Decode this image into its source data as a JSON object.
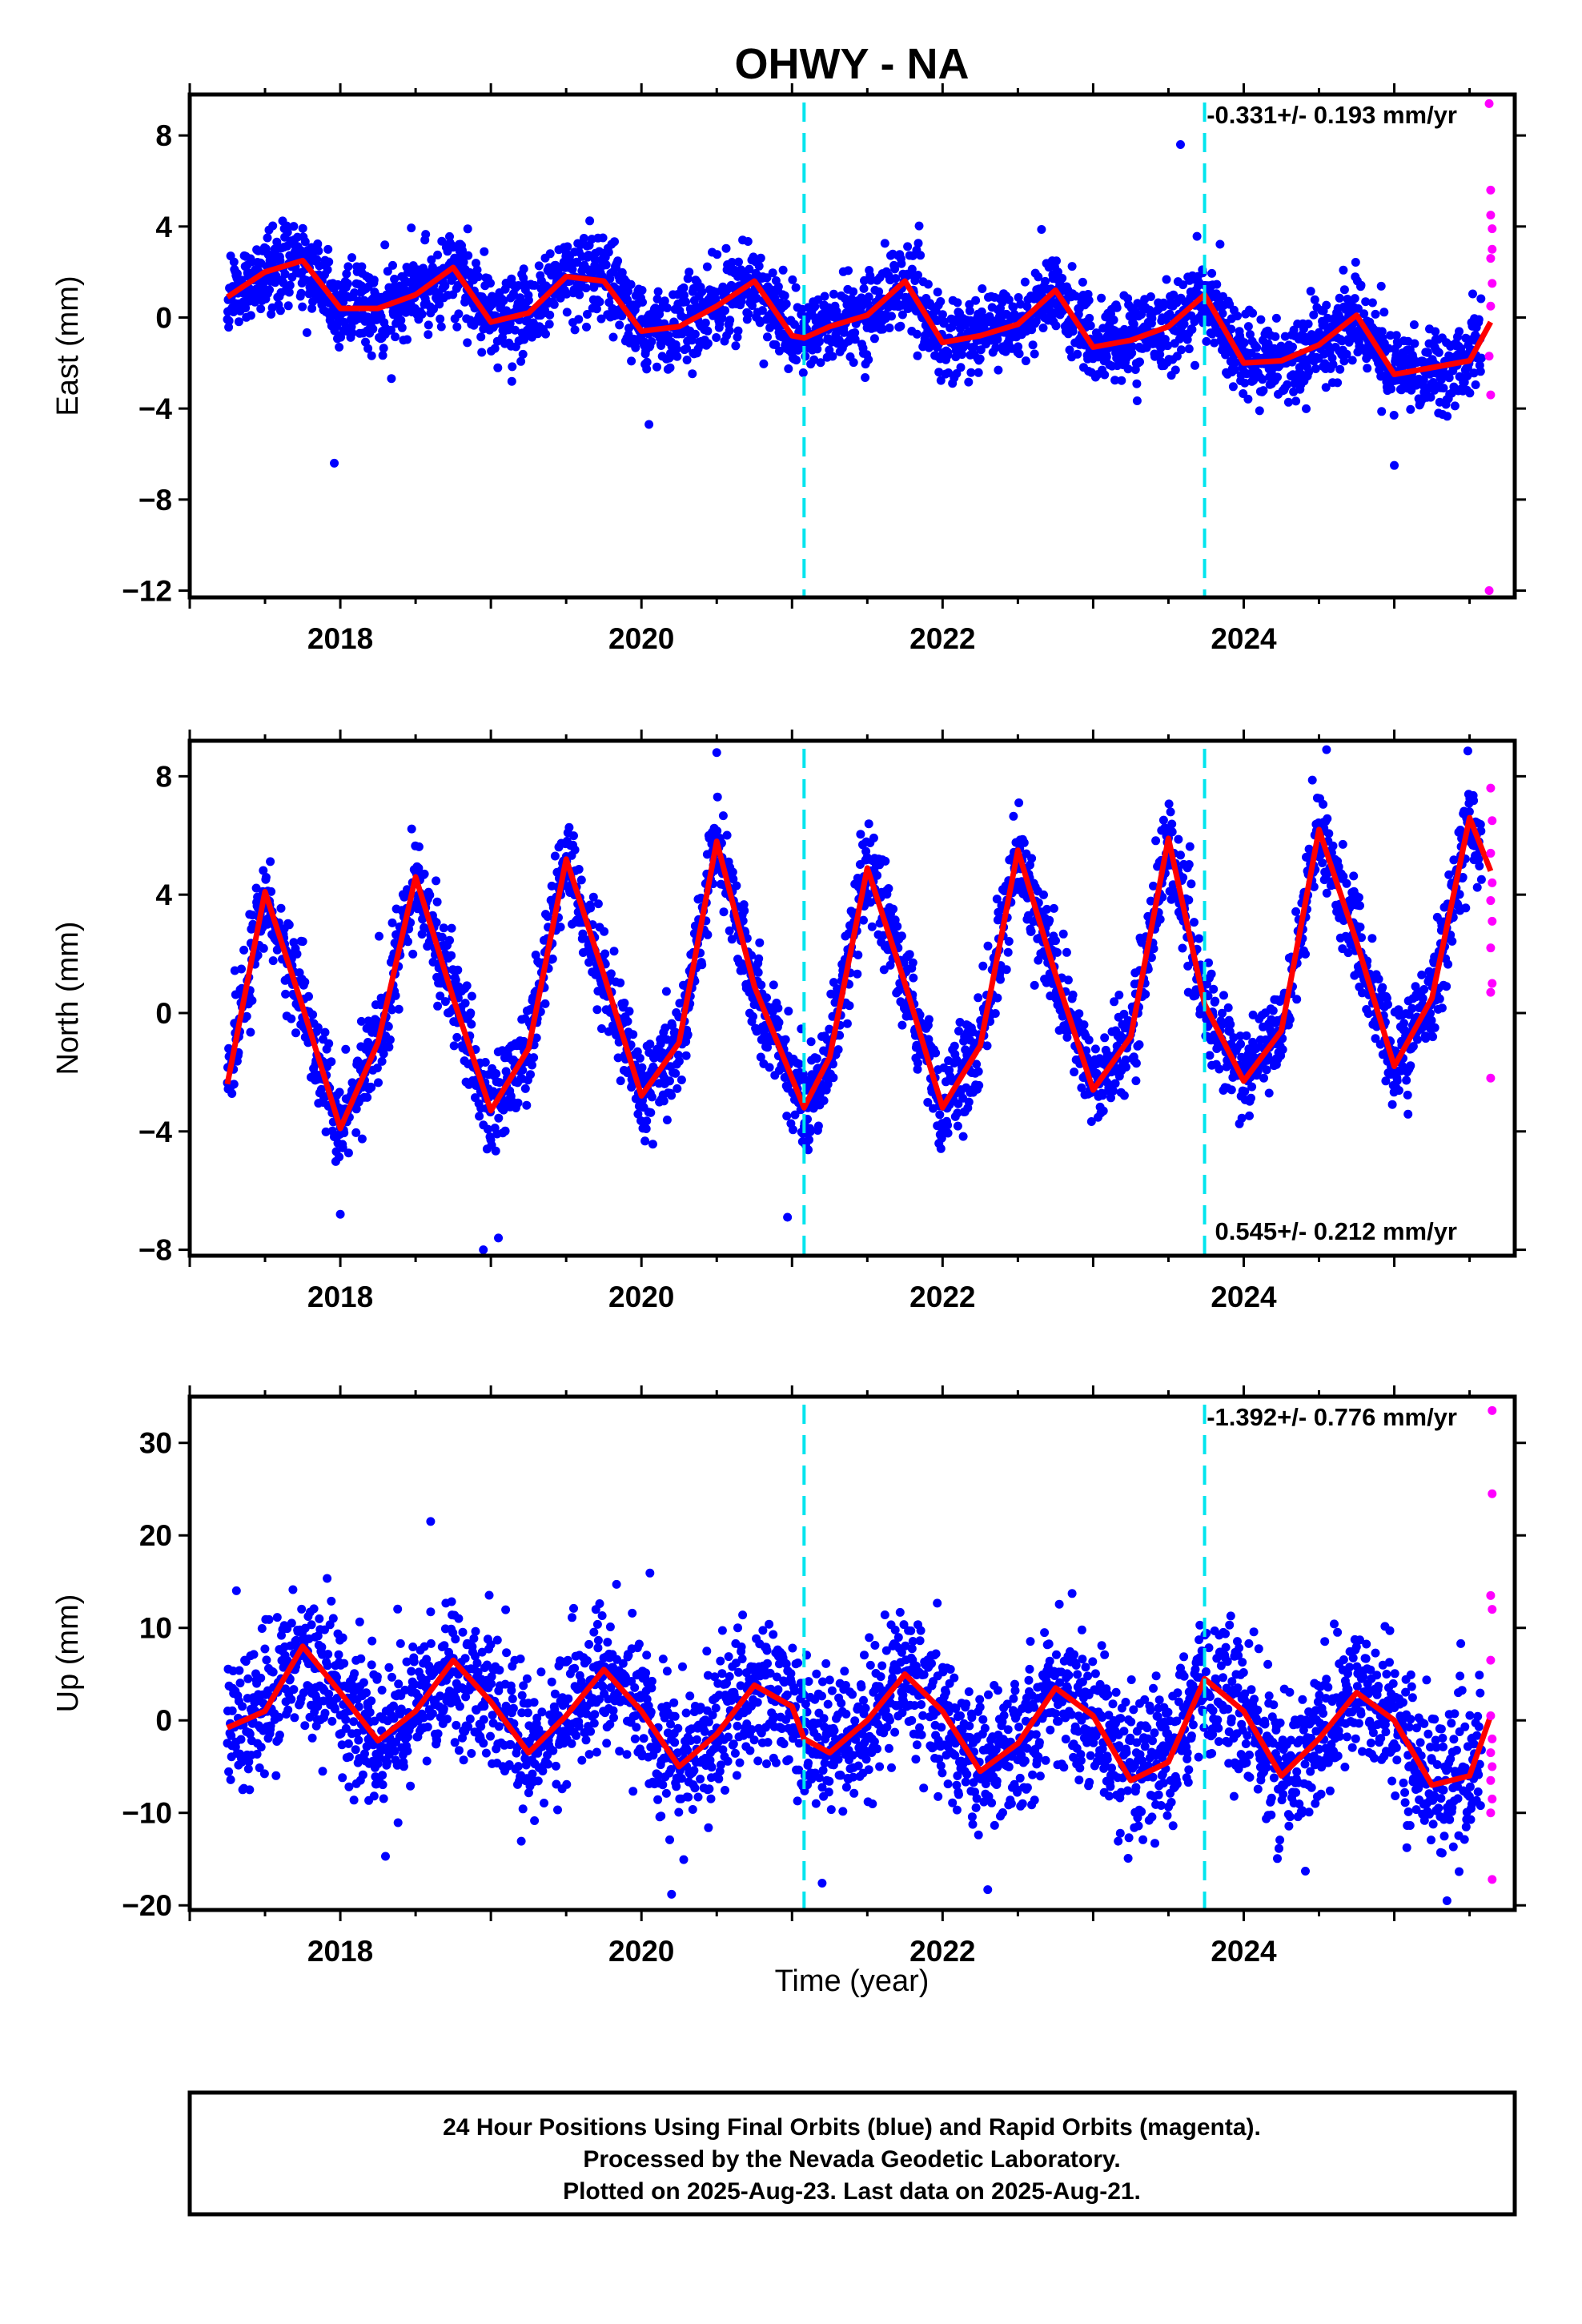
{
  "title": "OHWY - NA",
  "colors": {
    "final_orbits": "#0000ff",
    "rapid_orbits": "#ff00ff",
    "model_fit": "#ff0000",
    "event_lines": "#00e5ee"
  },
  "xlabel": "Time (year)",
  "caption": {
    "line1": "24 Hour Positions Using Final Orbits (blue) and Rapid Orbits (magenta).",
    "line2": "Processed by the Nevada Geodetic Laboratory.",
    "line3": "Plotted on 2025-Aug-23. Last data on 2025-Aug-21."
  },
  "chart_data": [
    {
      "type": "scatter",
      "panel": "east",
      "ylabel": "East (mm)",
      "rate_text": "-0.331+/- 0.193 mm/yr",
      "rate_position": "top-right",
      "xlim": [
        2017.0,
        2025.8
      ],
      "ylim": [
        -12.3,
        9.8
      ],
      "x_ticks": [
        2018,
        2020,
        2022,
        2024
      ],
      "y_ticks": [
        -12,
        -8,
        -4,
        0,
        4,
        8
      ],
      "event_lines_x": [
        2021.08,
        2023.74
      ],
      "trend": {
        "intercept_at_2017_25": 1.2,
        "rate_mm_yr": -0.331
      },
      "annual_amplitude": 1.5,
      "phase_peak_x": 2017.65,
      "noise_sd": 0.9,
      "series_fit_x": [
        2017.25,
        2017.5,
        2017.75,
        2018.0,
        2018.25,
        2018.5,
        2018.75,
        2019.0,
        2019.25,
        2019.5,
        2019.75,
        2020.0,
        2020.25,
        2020.5,
        2020.75,
        2021.0,
        2021.08,
        2021.25,
        2021.5,
        2021.75,
        2022.0,
        2022.25,
        2022.5,
        2022.75,
        2023.0,
        2023.25,
        2023.5,
        2023.74,
        2024.0,
        2024.25,
        2024.5,
        2024.75,
        2025.0,
        2025.25,
        2025.5,
        2025.64
      ],
      "series_fit_y": [
        0.9,
        2.0,
        2.5,
        0.4,
        0.4,
        1.0,
        2.2,
        -0.2,
        0.2,
        1.8,
        1.6,
        -0.6,
        -0.4,
        0.5,
        1.6,
        -0.8,
        -0.9,
        -0.4,
        0.1,
        1.6,
        -1.1,
        -0.8,
        -0.3,
        1.2,
        -1.3,
        -1.0,
        -0.4,
        1.0,
        -2.0,
        -1.9,
        -1.2,
        0.1,
        -2.5,
        -2.2,
        -1.9,
        -0.2
      ],
      "outliers": [
        [
          2017.96,
          -6.4
        ],
        [
          2020.05,
          -4.7
        ],
        [
          2023.58,
          7.6
        ],
        [
          2025.0,
          -6.5
        ]
      ],
      "rapid_points": [
        [
          2025.63,
          9.4
        ],
        [
          2025.64,
          5.6
        ],
        [
          2025.64,
          4.5
        ],
        [
          2025.65,
          3.9
        ],
        [
          2025.65,
          3.0
        ],
        [
          2025.64,
          2.6
        ],
        [
          2025.65,
          1.5
        ],
        [
          2025.64,
          0.5
        ],
        [
          2025.63,
          -1.7
        ],
        [
          2025.64,
          -3.4
        ],
        [
          2025.63,
          -12.0
        ]
      ]
    },
    {
      "type": "scatter",
      "panel": "north",
      "ylabel": "North (mm)",
      "rate_text": "0.545+/- 0.212 mm/yr",
      "rate_position": "bottom-right",
      "xlim": [
        2017.0,
        2025.8
      ],
      "ylim": [
        -8.2,
        9.2
      ],
      "x_ticks": [
        2018,
        2020,
        2022,
        2024
      ],
      "y_ticks": [
        -8,
        -4,
        0,
        4,
        8
      ],
      "event_lines_x": [
        2021.08,
        2023.74
      ],
      "trend": {
        "intercept_at_2017_25": -0.9,
        "rate_mm_yr": 0.545
      },
      "annual_amplitude": 4.3,
      "phase_peak_x": 2017.5,
      "noise_sd": 0.8,
      "series_fit_x": [
        2017.25,
        2017.5,
        2017.75,
        2018.0,
        2018.25,
        2018.5,
        2018.75,
        2019.0,
        2019.25,
        2019.5,
        2019.75,
        2020.0,
        2020.25,
        2020.5,
        2020.75,
        2021.0,
        2021.08,
        2021.25,
        2021.5,
        2021.75,
        2022.0,
        2022.25,
        2022.5,
        2022.75,
        2023.0,
        2023.25,
        2023.5,
        2023.74,
        2024.0,
        2024.25,
        2024.5,
        2024.75,
        2025.0,
        2025.25,
        2025.5,
        2025.64
      ],
      "series_fit_y": [
        -2.4,
        4.1,
        0.2,
        -3.9,
        -1.0,
        4.6,
        0.5,
        -3.3,
        -1.2,
        5.2,
        1.3,
        -2.8,
        -1.0,
        5.8,
        0.9,
        -2.2,
        -3.2,
        -1.5,
        4.9,
        1.0,
        -3.2,
        -1.1,
        5.5,
        1.3,
        -2.6,
        -0.8,
        5.9,
        0.3,
        -2.3,
        -0.6,
        6.2,
        2.4,
        -1.8,
        0.5,
        6.6,
        4.8
      ],
      "outliers": [
        [
          2018.0,
          -6.8
        ],
        [
          2018.95,
          -8.0
        ],
        [
          2019.05,
          -7.6
        ],
        [
          2020.97,
          -6.9
        ],
        [
          2020.5,
          8.8
        ],
        [
          2024.55,
          8.9
        ]
      ],
      "rapid_points": [
        [
          2025.64,
          7.6
        ],
        [
          2025.65,
          6.5
        ],
        [
          2025.64,
          5.4
        ],
        [
          2025.65,
          4.4
        ],
        [
          2025.64,
          3.8
        ],
        [
          2025.65,
          3.1
        ],
        [
          2025.64,
          2.2
        ],
        [
          2025.65,
          1.0
        ],
        [
          2025.64,
          0.7
        ],
        [
          2025.64,
          -2.2
        ]
      ]
    },
    {
      "type": "scatter",
      "panel": "up",
      "ylabel": "Up (mm)",
      "rate_text": "-1.392+/- 0.776 mm/yr",
      "rate_position": "top-right",
      "xlim": [
        2017.0,
        2025.8
      ],
      "ylim": [
        -20.5,
        35.0
      ],
      "x_ticks": [
        2018,
        2020,
        2022,
        2024
      ],
      "y_ticks": [
        -20,
        -10,
        0,
        10,
        20,
        30
      ],
      "event_lines_x": [
        2021.08,
        2023.74
      ],
      "trend": {
        "intercept_at_2017_25": 3.0,
        "rate_mm_yr": -1.392
      },
      "annual_amplitude": 5.2,
      "phase_peak_x": 2017.75,
      "noise_sd": 3.8,
      "series_fit_x": [
        2017.25,
        2017.5,
        2017.75,
        2018.0,
        2018.25,
        2018.5,
        2018.75,
        2019.0,
        2019.25,
        2019.5,
        2019.75,
        2020.0,
        2020.25,
        2020.5,
        2020.75,
        2021.0,
        2021.08,
        2021.25,
        2021.5,
        2021.75,
        2022.0,
        2022.25,
        2022.5,
        2022.75,
        2023.0,
        2023.25,
        2023.5,
        2023.74,
        2024.0,
        2024.25,
        2024.5,
        2024.75,
        2025.0,
        2025.25,
        2025.5,
        2025.64
      ],
      "series_fit_y": [
        -0.8,
        1.0,
        8.0,
        3.0,
        -2.2,
        1.0,
        6.5,
        2.0,
        -3.5,
        0.5,
        5.5,
        1.0,
        -5.0,
        -1.5,
        3.8,
        1.5,
        -2.0,
        -3.5,
        0.0,
        5.0,
        1.0,
        -5.5,
        -2.5,
        3.5,
        0.5,
        -6.5,
        -4.5,
        4.5,
        1.0,
        -6.0,
        -2.0,
        3.0,
        0.0,
        -7.0,
        -6.0,
        0.5
      ],
      "outliers": [
        [
          2018.3,
          -14.7
        ],
        [
          2018.6,
          21.5
        ],
        [
          2020.2,
          -18.8
        ],
        [
          2021.2,
          -17.6
        ],
        [
          2022.3,
          -18.3
        ],
        [
          2025.35,
          -19.5
        ]
      ],
      "rapid_points": [
        [
          2025.65,
          33.5
        ],
        [
          2025.65,
          24.5
        ],
        [
          2025.64,
          13.5
        ],
        [
          2025.65,
          12.0
        ],
        [
          2025.64,
          6.5
        ],
        [
          2025.64,
          0.5
        ],
        [
          2025.65,
          -2.0
        ],
        [
          2025.64,
          -3.5
        ],
        [
          2025.65,
          -5.0
        ],
        [
          2025.64,
          -6.5
        ],
        [
          2025.65,
          -8.5
        ],
        [
          2025.64,
          -10.0
        ],
        [
          2025.65,
          -17.2
        ]
      ]
    }
  ]
}
